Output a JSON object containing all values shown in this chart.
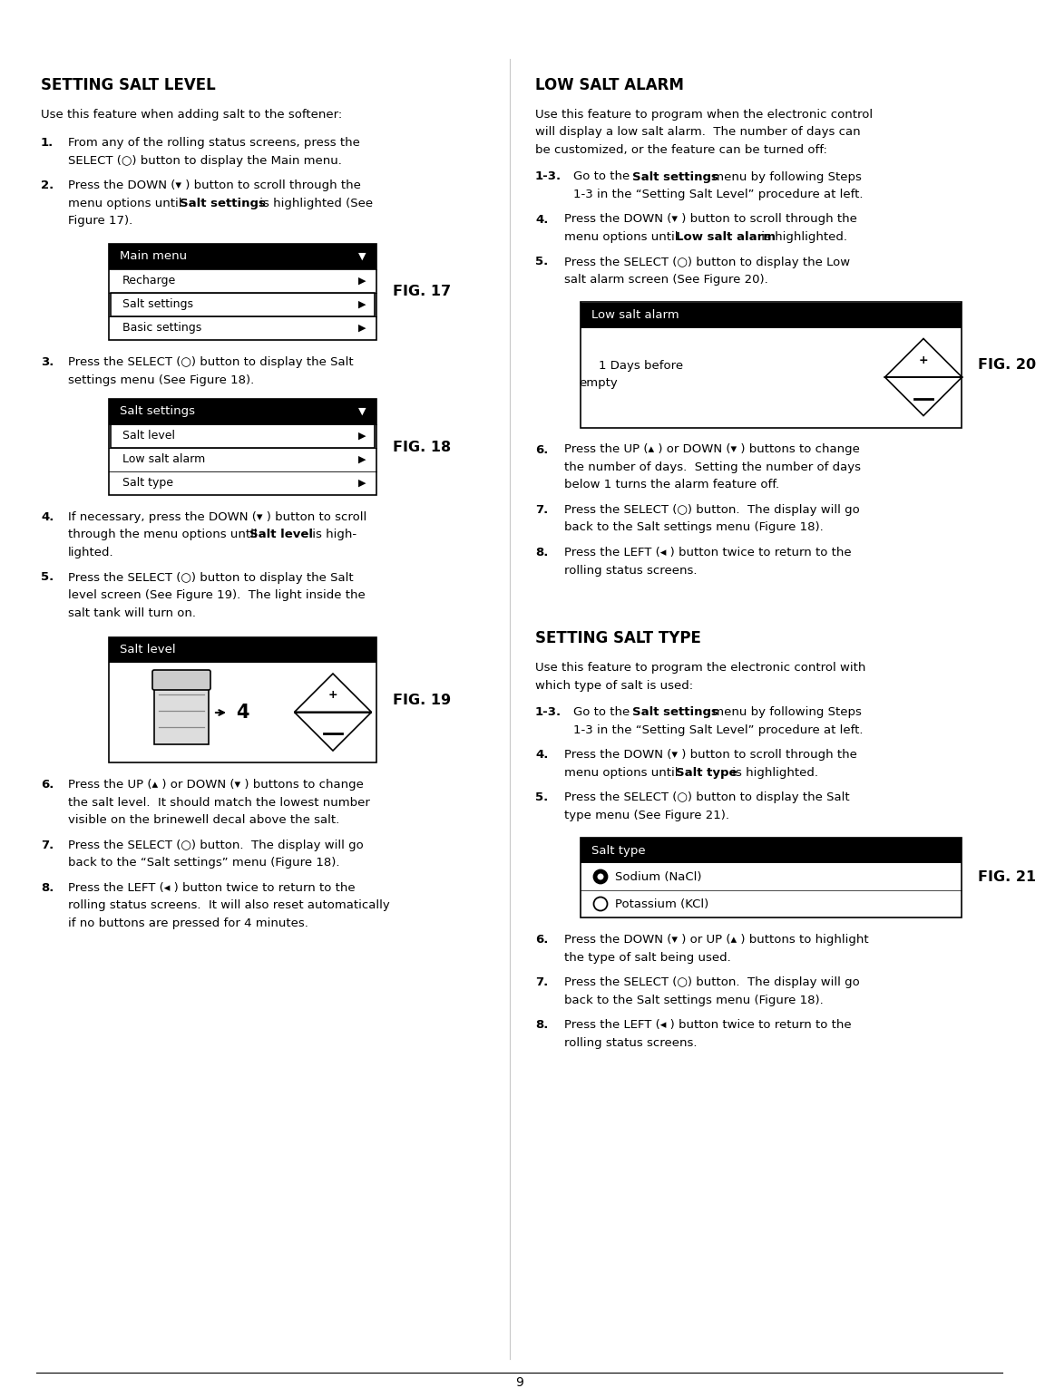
{
  "header_bg": "#1a1a1a",
  "page_bg": "#ffffff",
  "page_number": "9",
  "section1_title": "SETTING SALT LEVEL",
  "section1_intro": "Use this feature when adding salt to the softener:",
  "section2_title": "LOW SALT ALARM",
  "section2_intro": "Use this feature to program when the electronic control\nwill display a low salt alarm.  The number of days can\nbe customized, or the feature can be turned off:",
  "section3_title": "SETTING SALT TYPE",
  "section3_intro": "Use this feature to program the electronic control with\nwhich type of salt is used:",
  "fig17_title": "Main menu",
  "fig17_rows": [
    "Recharge",
    "Salt settings",
    "Basic settings"
  ],
  "fig17_highlighted": "Salt settings",
  "fig17_label": "FIG. 17",
  "fig18_title": "Salt settings",
  "fig18_rows": [
    "Salt level",
    "Low salt alarm",
    "Salt type"
  ],
  "fig18_highlighted": "Salt level",
  "fig18_label": "FIG. 18",
  "fig19_title": "Salt level",
  "fig19_value": "4",
  "fig19_label": "FIG. 19",
  "fig20_title": "Low salt alarm",
  "fig20_text1": "1 Days before",
  "fig20_text2": "empty",
  "fig20_label": "FIG. 20",
  "fig21_title": "Salt type",
  "fig21_rows": [
    "Sodium (NaCl)",
    "Potassium (KCl)"
  ],
  "fig21_selected": "Sodium (NaCl)",
  "fig21_label": "FIG. 21",
  "left_steps": [
    {
      "num": "1",
      "lines": [
        "From any of the rolling status screens, press the",
        "SELECT (○) button to display the Main menu."
      ]
    },
    {
      "num": "2",
      "lines": [
        "Press the DOWN (▾ ) button to scroll through the",
        "menu options until |Salt settings| is highlighted (See",
        "Figure 17)."
      ]
    },
    {
      "num": "3",
      "lines": [
        "Press the SELECT (○) button to display the Salt",
        "settings menu (See Figure 18)."
      ]
    },
    {
      "num": "4",
      "lines": [
        "If necessary, press the DOWN (▾ ) button to scroll",
        "through the menu options until |Salt level| is high-",
        "lighted."
      ]
    },
    {
      "num": "5",
      "lines": [
        "Press the SELECT (○) button to display the Salt",
        "level screen (See Figure 19).  The light inside the",
        "salt tank will turn on."
      ]
    },
    {
      "num": "6",
      "lines": [
        "Press the UP (▴ ) or DOWN (▾ ) buttons to change",
        "the salt level.  It should match the lowest number",
        "visible on the brinewell decal above the salt."
      ]
    },
    {
      "num": "7",
      "lines": [
        "Press the SELECT (○) button.  The display will go",
        "back to the “Salt settings” menu (Figure 18)."
      ]
    },
    {
      "num": "8",
      "lines": [
        "Press the LEFT (◂ ) button twice to return to the",
        "rolling status screens.  It will also reset automatically",
        "if no buttons are pressed for 4 minutes."
      ]
    }
  ],
  "right_steps_s2": [
    {
      "num": "1-3",
      "lines": [
        "Go to the |Salt settings| menu by following Steps",
        "1-3 in the “Setting Salt Level” procedure at left."
      ]
    },
    {
      "num": "4",
      "lines": [
        "Press the DOWN (▾ ) button to scroll through the",
        "menu options until |Low salt alarm| is highlighted."
      ]
    },
    {
      "num": "5",
      "lines": [
        "Press the SELECT (○) button to display the Low",
        "salt alarm screen (See Figure 20)."
      ]
    },
    {
      "num": "6",
      "lines": [
        "Press the UP (▴ ) or DOWN (▾ ) buttons to change",
        "the number of days.  Setting the number of days",
        "below 1 turns the alarm feature off."
      ]
    },
    {
      "num": "7",
      "lines": [
        "Press the SELECT (○) button.  The display will go",
        "back to the Salt settings menu (Figure 18)."
      ]
    },
    {
      "num": "8",
      "lines": [
        "Press the LEFT (◂ ) button twice to return to the",
        "rolling status screens."
      ]
    }
  ],
  "right_steps_s3": [
    {
      "num": "1-3",
      "lines": [
        "Go to the |Salt settings| menu by following Steps",
        "1-3 in the “Setting Salt Level” procedure at left."
      ]
    },
    {
      "num": "4",
      "lines": [
        "Press the DOWN (▾ ) button to scroll through the",
        "menu options until |Salt type| is highlighted."
      ]
    },
    {
      "num": "5",
      "lines": [
        "Press the SELECT (○) button to display the Salt",
        "type menu (See Figure 21)."
      ]
    },
    {
      "num": "6",
      "lines": [
        "Press the DOWN (▾ ) or UP (▴ ) buttons to highlight",
        "the type of salt being used."
      ]
    },
    {
      "num": "7",
      "lines": [
        "Press the SELECT (○) button.  The display will go",
        "back to the Salt settings menu (Figure 18)."
      ]
    },
    {
      "num": "8",
      "lines": [
        "Press the LEFT (◂ ) button twice to return to the",
        "rolling status screens."
      ]
    }
  ]
}
